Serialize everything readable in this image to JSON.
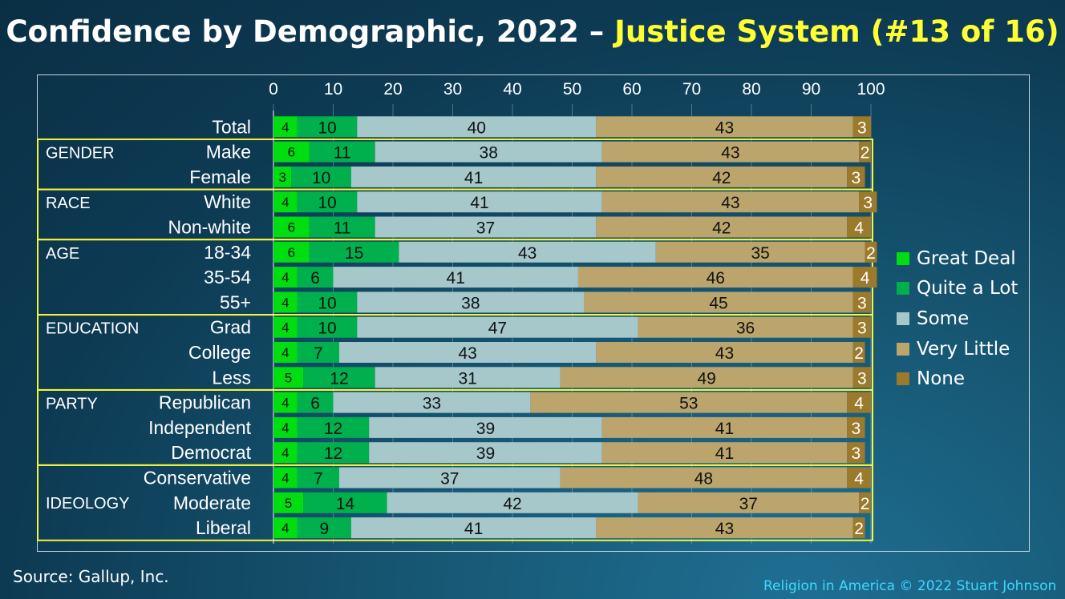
{
  "title": {
    "main": "Confidence by Demographic, 2022 – ",
    "accent": "Justice System (#13 of 16)"
  },
  "source": "Source: Gallup, Inc.",
  "credit": "Religion in America © 2022 Stuart Johnson",
  "colors": {
    "great_deal": "#00dd11",
    "quite_a_lot": "#00b04c",
    "some": "#a6c8cb",
    "very_little": "#bba56c",
    "none": "#9c7a2c",
    "group_box": "#f5f53c",
    "title_accent": "#ffff33",
    "credit": "#3fd8ff"
  },
  "chart_data": {
    "type": "bar",
    "orientation": "horizontal",
    "stacked": true,
    "xlim": [
      0,
      100
    ],
    "x_ticks": [
      "0",
      "10",
      "20",
      "30",
      "40",
      "50",
      "60",
      "70",
      "80",
      "90",
      "100"
    ],
    "grid": true,
    "legend_position": "right",
    "categories": [
      "Total",
      "Make",
      "Female",
      "White",
      "Non-white",
      "18-34",
      "35-54",
      "55+",
      "Grad",
      "College",
      "Less",
      "Republican",
      "Independent",
      "Democrat",
      "Conservative",
      "Moderate",
      "Liberal"
    ],
    "groups": [
      {
        "label": "GENDER",
        "rows": [
          1,
          2
        ]
      },
      {
        "label": "RACE",
        "rows": [
          3,
          4
        ]
      },
      {
        "label": "AGE",
        "rows": [
          5,
          7
        ]
      },
      {
        "label": "EDUCATION",
        "rows": [
          8,
          10
        ]
      },
      {
        "label": "PARTY",
        "rows": [
          11,
          13
        ]
      },
      {
        "label": "IDEOLOGY",
        "rows": [
          14,
          16
        ]
      }
    ],
    "series": [
      {
        "name": "Great Deal",
        "values": [
          4,
          6,
          3,
          4,
          6,
          6,
          4,
          4,
          4,
          4,
          5,
          4,
          4,
          4,
          4,
          5,
          4
        ]
      },
      {
        "name": "Quite a Lot",
        "values": [
          10,
          11,
          10,
          10,
          11,
          15,
          6,
          10,
          10,
          7,
          12,
          6,
          12,
          12,
          7,
          14,
          9
        ]
      },
      {
        "name": "Some",
        "values": [
          40,
          38,
          41,
          41,
          37,
          43,
          41,
          38,
          47,
          43,
          31,
          33,
          39,
          39,
          37,
          42,
          41
        ]
      },
      {
        "name": "Very Little",
        "values": [
          43,
          43,
          42,
          43,
          42,
          35,
          46,
          45,
          36,
          43,
          49,
          53,
          41,
          41,
          48,
          37,
          43
        ]
      },
      {
        "name": "None",
        "values": [
          3,
          2,
          3,
          3,
          4,
          2,
          4,
          3,
          3,
          2,
          3,
          4,
          3,
          3,
          4,
          2,
          2
        ]
      }
    ]
  }
}
